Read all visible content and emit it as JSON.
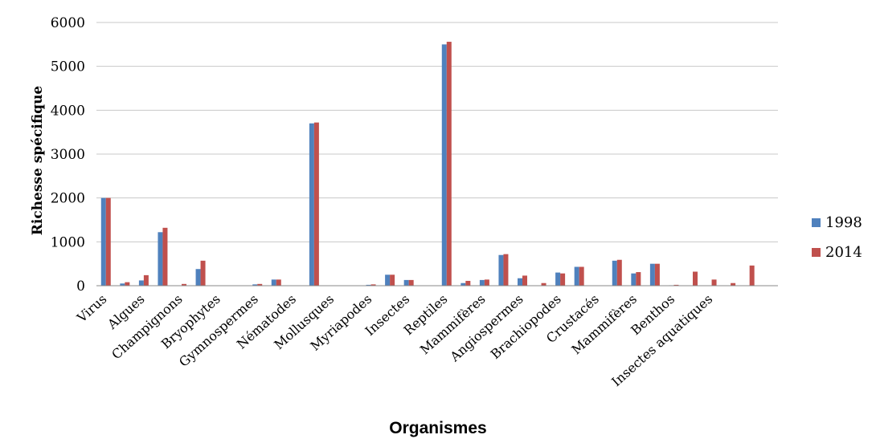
{
  "chart_data": {
    "type": "bar",
    "xlabel": "Organismes",
    "ylabel": "Richesse spécifique",
    "ylim": [
      0,
      6000
    ],
    "yticks": [
      0,
      1000,
      2000,
      3000,
      4000,
      5000,
      6000
    ],
    "grid": true,
    "legend_position": "right",
    "slots": 36,
    "tick_labels": [
      {
        "slot": 0,
        "label": "Virus"
      },
      {
        "slot": 2,
        "label": "Algues"
      },
      {
        "slot": 4,
        "label": "Champignons"
      },
      {
        "slot": 6,
        "label": "Bryophytes"
      },
      {
        "slot": 8,
        "label": "Gymnospermes"
      },
      {
        "slot": 10,
        "label": "Nématodes"
      },
      {
        "slot": 12,
        "label": "Mollusques"
      },
      {
        "slot": 14,
        "label": "Myriapodes"
      },
      {
        "slot": 16,
        "label": "Insectes"
      },
      {
        "slot": 18,
        "label": "Reptiles"
      },
      {
        "slot": 20,
        "label": "Mammifères"
      },
      {
        "slot": 22,
        "label": "Angiospermes"
      },
      {
        "slot": 24,
        "label": "Brachiopodes"
      },
      {
        "slot": 26,
        "label": "Crustacés"
      },
      {
        "slot": 28,
        "label": "Mammifères"
      },
      {
        "slot": 30,
        "label": "Benthos"
      },
      {
        "slot": 32,
        "label": "Insectes aquatiques"
      }
    ],
    "series": [
      {
        "name": "1998",
        "color": "#4F81BD",
        "values": [
          2000,
          50,
          120,
          1220,
          0,
          380,
          0,
          0,
          30,
          140,
          0,
          3700,
          0,
          0,
          20,
          250,
          130,
          0,
          5500,
          60,
          130,
          700,
          170,
          0,
          300,
          430,
          0,
          570,
          280,
          500,
          10,
          0,
          0,
          0,
          0,
          0
        ]
      },
      {
        "name": "2014",
        "color": "#C0504D",
        "values": [
          2000,
          80,
          240,
          1320,
          40,
          570,
          0,
          0,
          40,
          140,
          0,
          3720,
          0,
          0,
          30,
          250,
          130,
          0,
          5560,
          110,
          140,
          720,
          230,
          60,
          280,
          430,
          0,
          590,
          310,
          500,
          20,
          320,
          140,
          60,
          460,
          0
        ]
      }
    ]
  }
}
